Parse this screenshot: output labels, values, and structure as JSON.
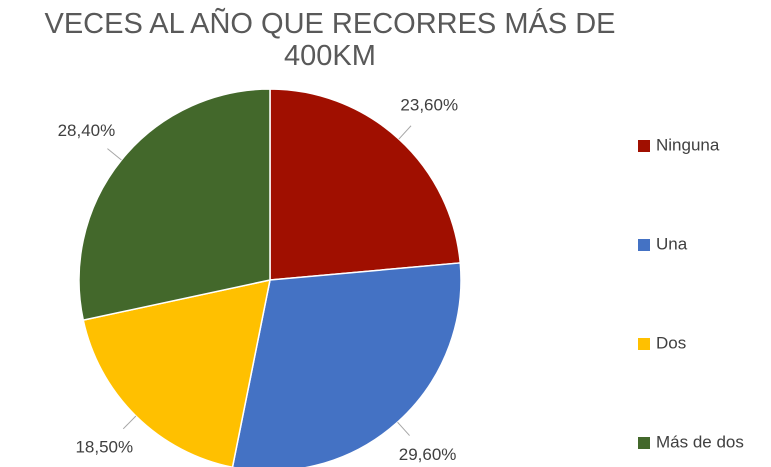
{
  "chart_data": {
    "type": "pie",
    "title": "VECES AL AÑO QUE RECORRES MÁS DE 400KM",
    "categories": [
      "Ninguna",
      "Una",
      "Dos",
      "Más de dos"
    ],
    "values": [
      23.6,
      29.6,
      18.5,
      28.4
    ],
    "value_labels": [
      "23,60%",
      "29,60%",
      "18,50%",
      "28,40%"
    ],
    "colors": [
      "#a00f00",
      "#4472c4",
      "#ffc000",
      "#43682b"
    ],
    "legend": "right"
  }
}
